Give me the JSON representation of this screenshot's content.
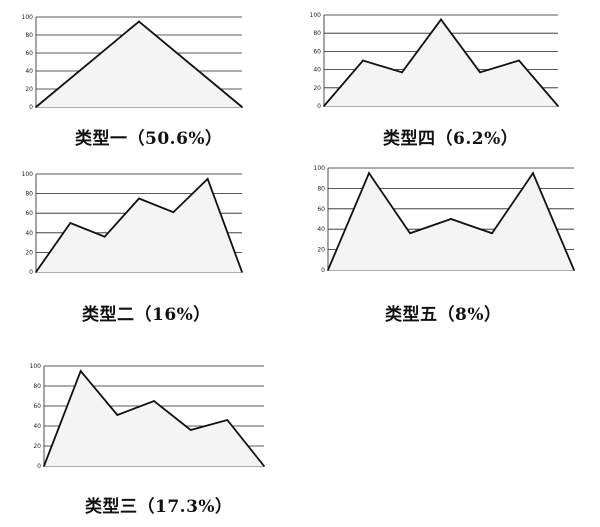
{
  "chart_data": [
    {
      "type": "area",
      "caption": "类型一（50.6%）",
      "ylim": [
        0,
        100
      ],
      "yticks": [
        0,
        20,
        40,
        60,
        80,
        100
      ],
      "grid": true,
      "x": [
        0,
        1,
        2
      ],
      "values": [
        0,
        95,
        0
      ]
    },
    {
      "type": "area",
      "caption": "类型四（6.2%）",
      "ylim": [
        0,
        100
      ],
      "yticks": [
        0,
        20,
        40,
        60,
        80,
        100
      ],
      "grid": true,
      "x": [
        0,
        1,
        2,
        3,
        4,
        5,
        6
      ],
      "values": [
        0,
        50,
        37,
        95,
        37,
        50,
        0
      ]
    },
    {
      "type": "area",
      "caption": "类型二（16%）",
      "ylim": [
        0,
        100
      ],
      "yticks": [
        0,
        20,
        40,
        60,
        80,
        100
      ],
      "grid": true,
      "x": [
        0,
        1,
        2,
        3,
        4,
        5,
        6
      ],
      "values": [
        0,
        50,
        36,
        75,
        61,
        95,
        0
      ]
    },
    {
      "type": "area",
      "caption": "类型五（8%）",
      "ylim": [
        0,
        100
      ],
      "yticks": [
        0,
        20,
        40,
        60,
        80,
        100
      ],
      "grid": true,
      "x": [
        0,
        1,
        2,
        3,
        4,
        5,
        6
      ],
      "values": [
        0,
        95,
        36,
        50,
        36,
        95,
        0
      ]
    },
    {
      "type": "area",
      "caption": "类型三（17.3%）",
      "ylim": [
        0,
        100
      ],
      "yticks": [
        0,
        20,
        40,
        60,
        80,
        100
      ],
      "grid": true,
      "x": [
        0,
        1,
        2,
        3,
        4,
        5,
        6
      ],
      "values": [
        0,
        95,
        51,
        65,
        36,
        46,
        0
      ]
    }
  ],
  "colors": {
    "line": "#111111",
    "grid": "#222222",
    "fill": "#f4f4f4"
  }
}
